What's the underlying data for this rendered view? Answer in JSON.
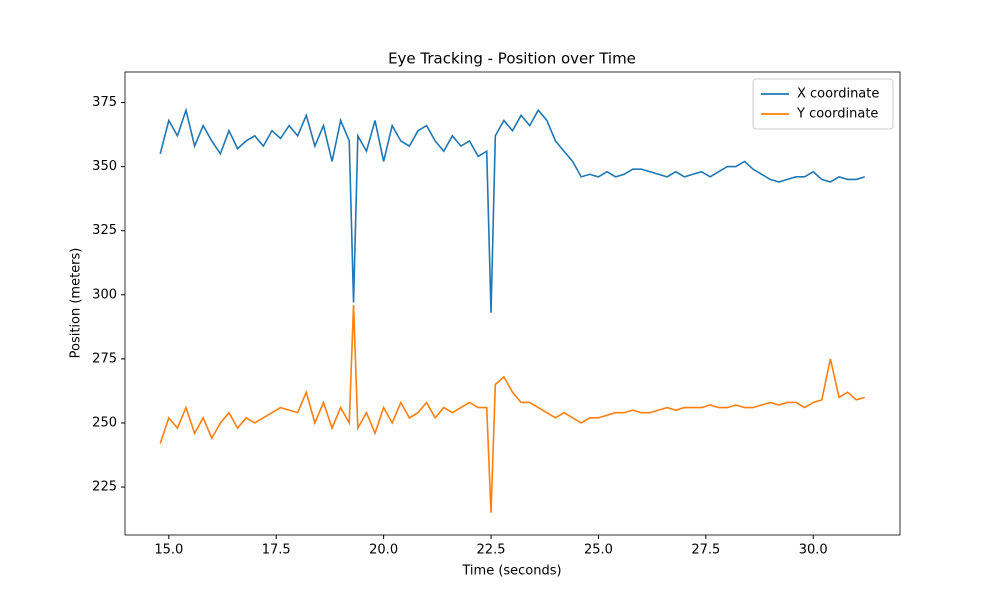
{
  "chart_data": {
    "type": "line",
    "title": "Eye Tracking - Position over Time",
    "x_label": "Time (seconds)",
    "y_label": "Position (meters)",
    "x": [
      14.8,
      15.0,
      15.2,
      15.4,
      15.6,
      15.8,
      16.0,
      16.2,
      16.4,
      16.6,
      16.8,
      17.0,
      17.2,
      17.4,
      17.6,
      17.8,
      18.0,
      18.2,
      18.4,
      18.6,
      18.8,
      19.0,
      19.2,
      19.3,
      19.4,
      19.6,
      19.8,
      20.0,
      20.2,
      20.4,
      20.6,
      20.8,
      21.0,
      21.2,
      21.4,
      21.6,
      21.8,
      22.0,
      22.2,
      22.4,
      22.5,
      22.6,
      22.8,
      23.0,
      23.2,
      23.4,
      23.6,
      23.8,
      24.0,
      24.2,
      24.4,
      24.6,
      24.8,
      25.0,
      25.2,
      25.4,
      25.6,
      25.8,
      26.0,
      26.2,
      26.4,
      26.6,
      26.8,
      27.0,
      27.2,
      27.4,
      27.6,
      27.8,
      28.0,
      28.2,
      28.4,
      28.6,
      28.8,
      29.0,
      29.2,
      29.4,
      29.6,
      29.8,
      30.0,
      30.2,
      30.4,
      30.6,
      30.8,
      31.0,
      31.2
    ],
    "series": [
      {
        "name": "X coordinate",
        "color": "#1f77b4",
        "values": [
          355,
          368,
          362,
          372,
          358,
          366,
          360,
          355,
          364,
          357,
          360,
          362,
          358,
          364,
          361,
          366,
          362,
          370,
          358,
          366,
          352,
          368,
          360,
          297,
          362,
          356,
          368,
          352,
          366,
          360,
          358,
          364,
          366,
          360,
          356,
          362,
          358,
          360,
          354,
          356,
          293,
          362,
          368,
          364,
          370,
          366,
          372,
          368,
          360,
          356,
          352,
          346,
          347,
          346,
          348,
          346,
          347,
          349,
          349,
          348,
          347,
          346,
          348,
          346,
          347,
          348,
          346,
          348,
          350,
          350,
          352,
          349,
          347,
          345,
          344,
          345,
          346,
          346,
          348,
          345,
          344,
          346,
          345,
          345,
          346
        ]
      },
      {
        "name": "Y coordinate",
        "color": "#ff7f0e",
        "values": [
          242,
          252,
          248,
          256,
          246,
          252,
          244,
          250,
          254,
          248,
          252,
          250,
          252,
          254,
          256,
          255,
          254,
          262,
          250,
          258,
          248,
          256,
          250,
          296,
          248,
          254,
          246,
          256,
          250,
          258,
          252,
          254,
          258,
          252,
          256,
          254,
          256,
          258,
          256,
          256,
          215,
          265,
          268,
          262,
          258,
          258,
          256,
          254,
          252,
          254,
          252,
          250,
          252,
          252,
          253,
          254,
          254,
          255,
          254,
          254,
          255,
          256,
          255,
          256,
          256,
          256,
          257,
          256,
          256,
          257,
          256,
          256,
          257,
          258,
          257,
          258,
          258,
          256,
          258,
          259,
          275,
          260,
          262,
          259,
          260
        ]
      }
    ],
    "xlim": [
      13.98,
      32.02
    ],
    "ylim": [
      206.3,
      386.9
    ],
    "xticks": [
      {
        "value": 15,
        "label": "15.0"
      },
      {
        "value": 17.5,
        "label": "17.5"
      },
      {
        "value": 20,
        "label": "20.0"
      },
      {
        "value": 22.5,
        "label": "22.5"
      },
      {
        "value": 25,
        "label": "25.0"
      },
      {
        "value": 27.5,
        "label": "27.5"
      },
      {
        "value": 30,
        "label": "30.0"
      }
    ],
    "yticks": [
      225,
      250,
      275,
      300,
      325,
      350,
      375
    ],
    "grid": false,
    "legend": "upper right"
  }
}
